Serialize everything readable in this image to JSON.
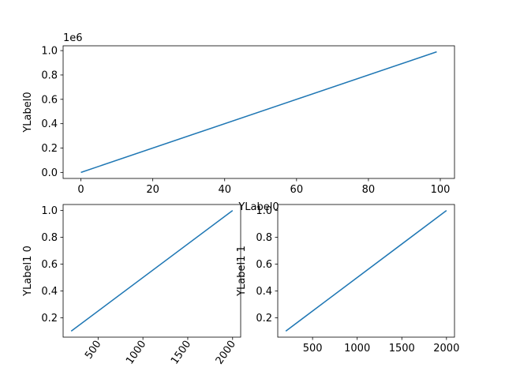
{
  "chart_data": [
    {
      "type": "line",
      "ylabel": "YLabel0",
      "xlabel": "YLabel0",
      "y_offset_label": "1e6",
      "x": [
        0,
        99
      ],
      "values": [
        0,
        990000
      ],
      "color": "#1f77b4",
      "xlim": [
        -4.95,
        103.95
      ],
      "xticks": [
        0,
        20,
        40,
        60,
        80,
        100
      ],
      "ylim": [
        -49500,
        1039500
      ],
      "yticks": [
        {
          "value": 0,
          "label": "0.0"
        },
        {
          "value": 200000,
          "label": "0.2"
        },
        {
          "value": 400000,
          "label": "0.4"
        },
        {
          "value": 600000,
          "label": "0.6"
        },
        {
          "value": 800000,
          "label": "0.8"
        },
        {
          "value": 1000000,
          "label": "1.0"
        }
      ]
    },
    {
      "type": "line",
      "ylabel": "YLabel1 0",
      "x": [
        200,
        2000
      ],
      "values": [
        0.1,
        1.0
      ],
      "color": "#1f77b4",
      "xlim": [
        110,
        2090
      ],
      "xticks": [
        500,
        1000,
        1500,
        2000
      ],
      "xtick_rotation": 55,
      "ylim": [
        0.055,
        1.045
      ],
      "yticks": [
        0.2,
        0.4,
        0.6,
        0.8,
        {
          "value": 1.0,
          "label": "1.0"
        }
      ]
    },
    {
      "type": "line",
      "ylabel": "YLabel1 1",
      "x": [
        200,
        2000
      ],
      "values": [
        0.1,
        1.0
      ],
      "color": "#1f77b4",
      "xlim": [
        110,
        2090
      ],
      "xticks": [
        500,
        1000,
        1500,
        2000
      ],
      "ylim": [
        0.055,
        1.045
      ],
      "yticks": [
        0.2,
        0.4,
        0.6,
        0.8,
        {
          "value": 1.0,
          "label": "1.0"
        }
      ]
    }
  ]
}
